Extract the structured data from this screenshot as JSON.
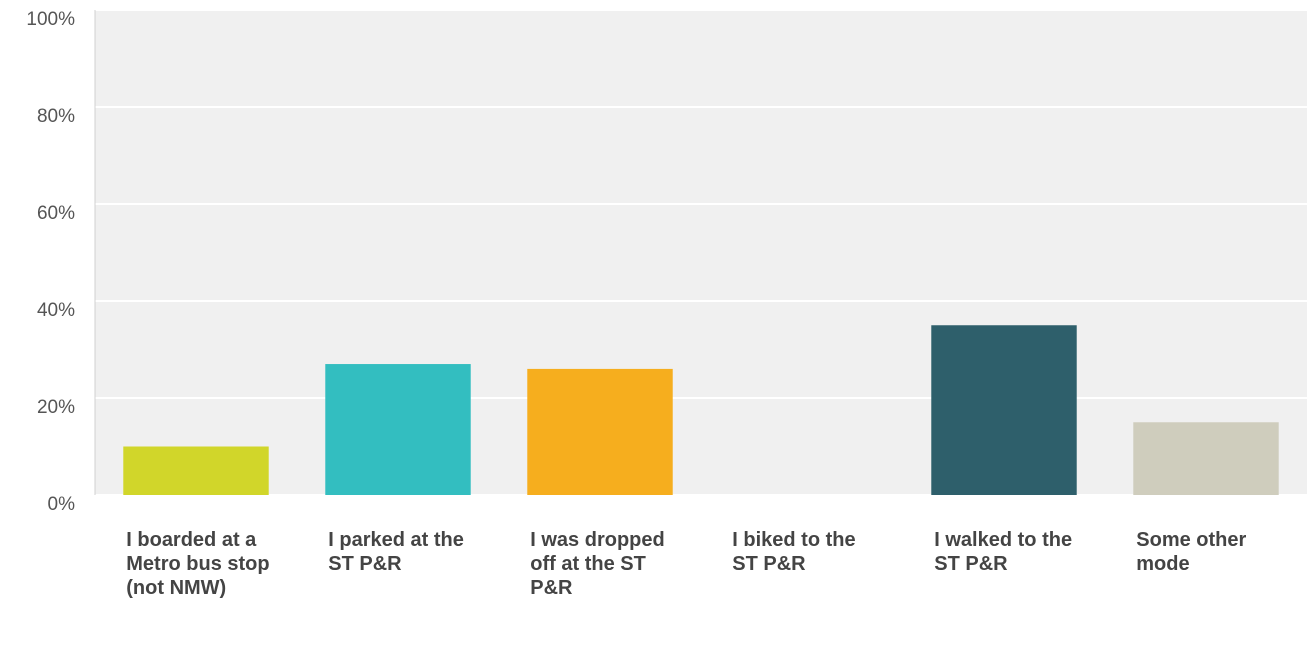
{
  "chart_data": {
    "type": "bar",
    "categories": [
      "I boarded at a Metro bus stop (not NMW)",
      "I parked at the ST P&R",
      "I was dropped off at the ST P&R",
      "I biked to the ST P&R",
      "I walked to the ST P&R",
      "Some other mode"
    ],
    "values": [
      10,
      27,
      26,
      0,
      35,
      15
    ],
    "colors": [
      "#d1d62a",
      "#33bec0",
      "#f6ae1e",
      "#8a8a8a",
      "#2e5f6b",
      "#cfcdbd"
    ],
    "ylim": [
      0,
      100
    ],
    "yticks": [
      {
        "value": 0,
        "label": "0%"
      },
      {
        "value": 20,
        "label": "20%"
      },
      {
        "value": 40,
        "label": "40%"
      },
      {
        "value": 60,
        "label": "60%"
      },
      {
        "value": 80,
        "label": "80%"
      },
      {
        "value": 100,
        "label": "100%"
      }
    ],
    "grid": true
  }
}
